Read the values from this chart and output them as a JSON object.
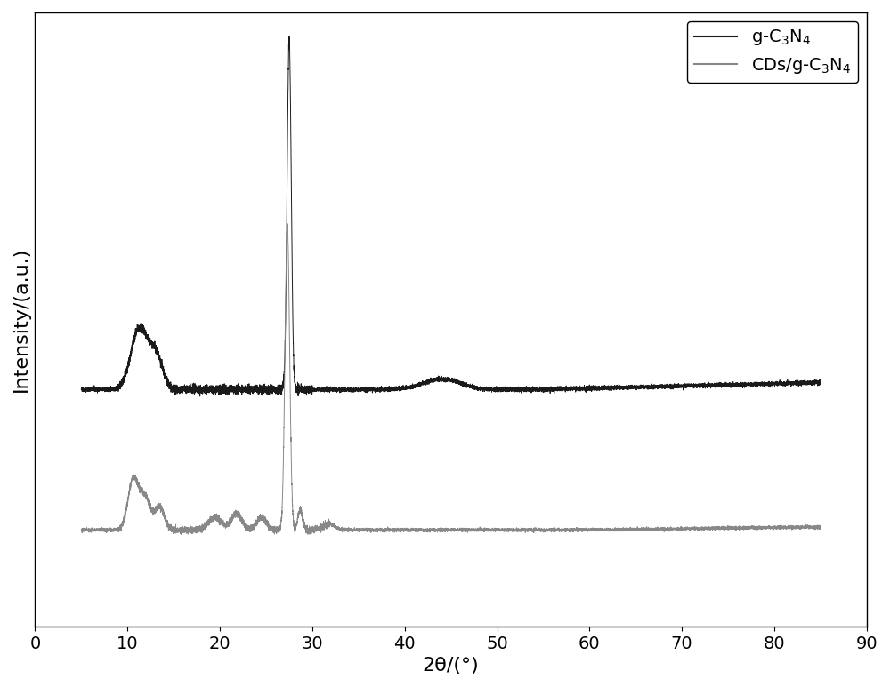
{
  "title": "",
  "xlabel": "2θ/(°)",
  "ylabel": "Intensity/(a.u.)",
  "xlim": [
    0,
    90
  ],
  "ylim": [
    0,
    10.5
  ],
  "xticks": [
    0,
    10,
    20,
    30,
    40,
    50,
    60,
    70,
    80,
    90
  ],
  "background_color": "#ffffff",
  "line1_color": "#1a1a1a",
  "line2_color": "#888888",
  "legend_labels": [
    "g-C$_3$N$_4$",
    "CDs/g-C$_3$N$_4$"
  ],
  "legend_loc": "upper right",
  "figsize": [
    10.0,
    7.73
  ],
  "dpi": 100,
  "xlabel_fontsize": 16,
  "ylabel_fontsize": 16,
  "tick_fontsize": 14,
  "legend_fontsize": 14
}
